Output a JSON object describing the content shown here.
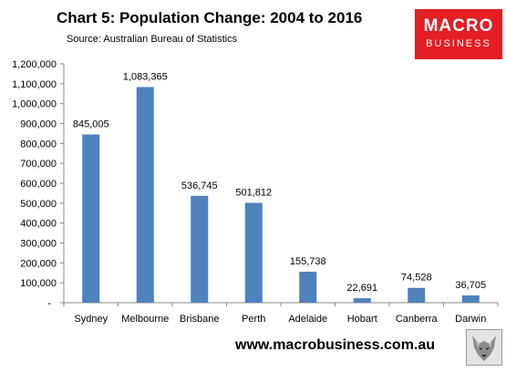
{
  "header": {
    "title": "Chart 5: Population Change: 2004 to 2016",
    "source": "Source: Australian Bureau of Statistics"
  },
  "logo": {
    "line1": "MACRO",
    "line2": "BUSINESS",
    "color": "#e31e24"
  },
  "footer": {
    "url": "www.macrobusiness.com.au",
    "icon": "wolf-logo-icon"
  },
  "chart_data": {
    "type": "bar",
    "title": "Chart 5: Population Change: 2004 to 2016",
    "subtitle": "Source: Australian Bureau of Statistics",
    "categories": [
      "Sydney",
      "Melbourne",
      "Brisbane",
      "Perth",
      "Adelaide",
      "Hobart",
      "Canberra",
      "Darwin"
    ],
    "values": [
      845005,
      1083365,
      536745,
      501812,
      155738,
      22691,
      74528,
      36705
    ],
    "data_labels": [
      "845,005",
      "1,083,365",
      "536,745",
      "501,812",
      "155,738",
      "22,691",
      "74,528",
      "36,705"
    ],
    "ylim": [
      0,
      1200000
    ],
    "yticks": [
      {
        "value": 0,
        "label": "-"
      },
      {
        "value": 100000,
        "label": "100,000"
      },
      {
        "value": 200000,
        "label": "200,000"
      },
      {
        "value": 300000,
        "label": "300,000"
      },
      {
        "value": 400000,
        "label": "400,000"
      },
      {
        "value": 500000,
        "label": "500,000"
      },
      {
        "value": 600000,
        "label": "600,000"
      },
      {
        "value": 700000,
        "label": "700,000"
      },
      {
        "value": 800000,
        "label": "800,000"
      },
      {
        "value": 900000,
        "label": "900,000"
      },
      {
        "value": 1000000,
        "label": "1,000,000"
      },
      {
        "value": 1100000,
        "label": "1,100,000"
      },
      {
        "value": 1200000,
        "label": "1,200,000"
      }
    ],
    "grid": false,
    "legend": "none",
    "bar_color": "#4f81bd"
  }
}
